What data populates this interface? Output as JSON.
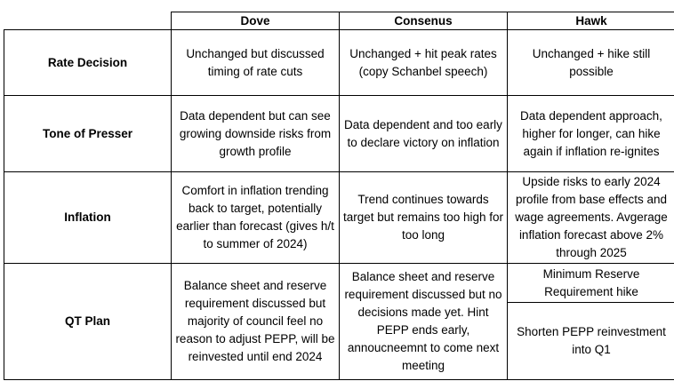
{
  "columns": [
    "Dove",
    "Consenus",
    "Hawk"
  ],
  "rows": [
    {
      "label": "Rate Decision",
      "dove": "Unchanged but discussed timing of rate cuts",
      "consensus": "Unchanged + hit peak rates (copy Schanbel speech)",
      "hawk": "Unchanged + hike still possible"
    },
    {
      "label": "Tone of Presser",
      "dove": "Data dependent but can see growing downside risks from growth profile",
      "consensus": "Data dependent and too early to declare victory on inflation",
      "hawk": "Data dependent approach, higher for longer, can hike again if inflation re-ignites"
    },
    {
      "label": "Inflation",
      "dove": "Comfort in inflation trending back to target, potentially earlier than forecast (gives h/t to summer of 2024)",
      "consensus": "Trend continues towards target but remains too high for too long",
      "hawk": "Upside risks to early 2024 profile from base effects and wage agreements. Avgerage inflation forecast above 2% through 2025"
    },
    {
      "label": "QT Plan",
      "dove": "Balance sheet and reserve requirement discussed but majority of council feel no reason to adjust PEPP, will be reinvested until end 2024",
      "consensus": "Balance sheet and reserve requirement discussed but no decisions made yet. Hint PEPP ends early, annoucneemnt to come next meeting",
      "hawk_1": "Minimum Reserve Requirement hike",
      "hawk_2": "Shorten PEPP reinvestment into Q1"
    }
  ]
}
